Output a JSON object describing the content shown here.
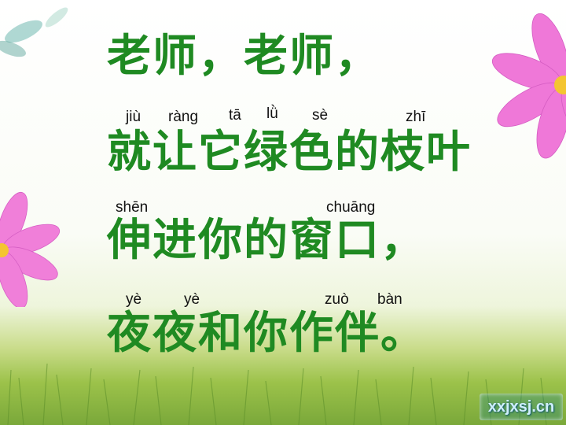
{
  "poem": {
    "line1": "老师，老师，",
    "line2": "就让它绿色的枝叶",
    "line3": "伸进你的窗口，",
    "line4": "夜夜和你作伴。"
  },
  "pinyin": {
    "jiu": "jiù",
    "rang": "ràng",
    "ta": "tā",
    "lv": "lǜ",
    "se": "sè",
    "zhi": "zhī",
    "shen": "shēn",
    "chuang": "chuāng",
    "ye1": "yè",
    "ye2": "yè",
    "zuo": "zuò",
    "ban": "bàn"
  },
  "watermark": "xxjxsj.cn",
  "colors": {
    "text": "#1f8a22",
    "petal": "#ee74d6",
    "center": "#f4c531"
  }
}
